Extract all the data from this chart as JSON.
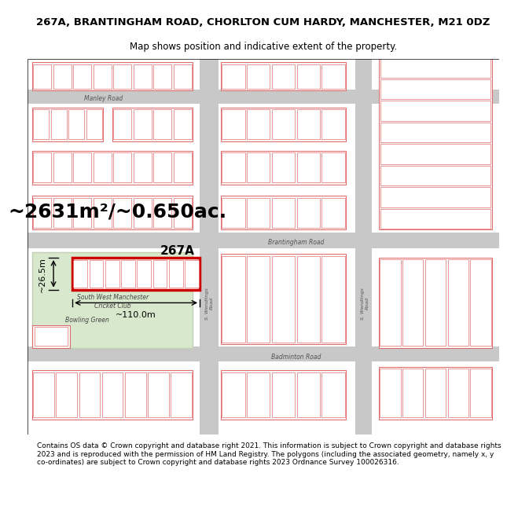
{
  "title": "267A, BRANTINGHAM ROAD, CHORLTON CUM HARDY, MANCHESTER, M21 0DZ",
  "subtitle": "Map shows position and indicative extent of the property.",
  "area_text": "~2631m²/~0.650ac.",
  "label_267A": "267A",
  "dim_width": "~110.0m",
  "dim_height": "~26.5m",
  "road_brantingham": "Brantingham Road",
  "road_badminton": "Badminton Road",
  "road_manley": "Manley Road",
  "label_bowling": "Bowling Green",
  "label_cricket": "South West Manchester\nCricket Club",
  "footer": "Contains OS data © Crown copyright and database right 2021. This information is subject to Crown copyright and database rights 2023 and is reproduced with the permission of HM Land Registry. The polygons (including the associated geometry, namely x, y co-ordinates) are subject to Crown copyright and database rights 2023 Ordnance Survey 100026316.",
  "bg_color": "#ffffff",
  "map_bg": "#f5f5f5",
  "block_fill": "#f5f5f5",
  "block_stroke": "#e05050",
  "road_color": "#d0d0d0",
  "highlighted_fill": "#ffffff",
  "highlighted_stroke": "#cc0000",
  "green_fill": "#d8e8cc",
  "green_stroke": "#c0d0b0",
  "title_fontsize": 9.5,
  "subtitle_fontsize": 8.5,
  "area_fontsize": 18,
  "footer_fontsize": 6.5
}
